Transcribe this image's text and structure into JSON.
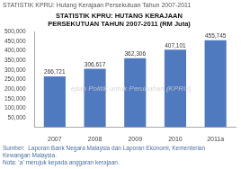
{
  "chart_data": {
    "type": "bar",
    "subtitle": "STATISTIK KPRU: Hutang Kerajaan Persekutuan Tahun 2007-2011",
    "title": [
      "STATISTIK KPRU: HUTANG KERAJAAN",
      "PERSEKUTUAN TAHUN 2007-2011 (RM Juta)"
    ],
    "categories": [
      "2007",
      "2008",
      "2009",
      "2010",
      "2011a"
    ],
    "values": [
      266721,
      306617,
      362306,
      407101,
      455745
    ],
    "value_labels": [
      "266,721",
      "306,617",
      "362,306",
      "407,101",
      "455,745"
    ],
    "data_labels": true,
    "color": "#4f7abf",
    "ylim": [
      0,
      500000
    ],
    "yticks": [
      {
        "value": 50000,
        "label": "50,000"
      },
      {
        "value": 100000,
        "label": "100,000"
      },
      {
        "value": 150000,
        "label": "150,000"
      },
      {
        "value": 200000,
        "label": "200,000"
      },
      {
        "value": 250000,
        "label": "250,000"
      },
      {
        "value": 300000,
        "label": "300,000"
      },
      {
        "value": 350000,
        "label": "350,000"
      },
      {
        "value": 400000,
        "label": "400,000"
      },
      {
        "value": 450000,
        "label": "450,000"
      },
      {
        "value": 500000,
        "label": "500,000"
      }
    ],
    "grid": false,
    "annotations": [
      "ejian Politik untuk Perubahan (KPRU)",
      "Sumber:  Laporan Bank Negara Malaysia dan Laporan Ekonomi, Kementerian\nKewangan Malaysia.",
      "Nota: ‘a’ merujuk kepada anggaran kerajaan."
    ]
  }
}
